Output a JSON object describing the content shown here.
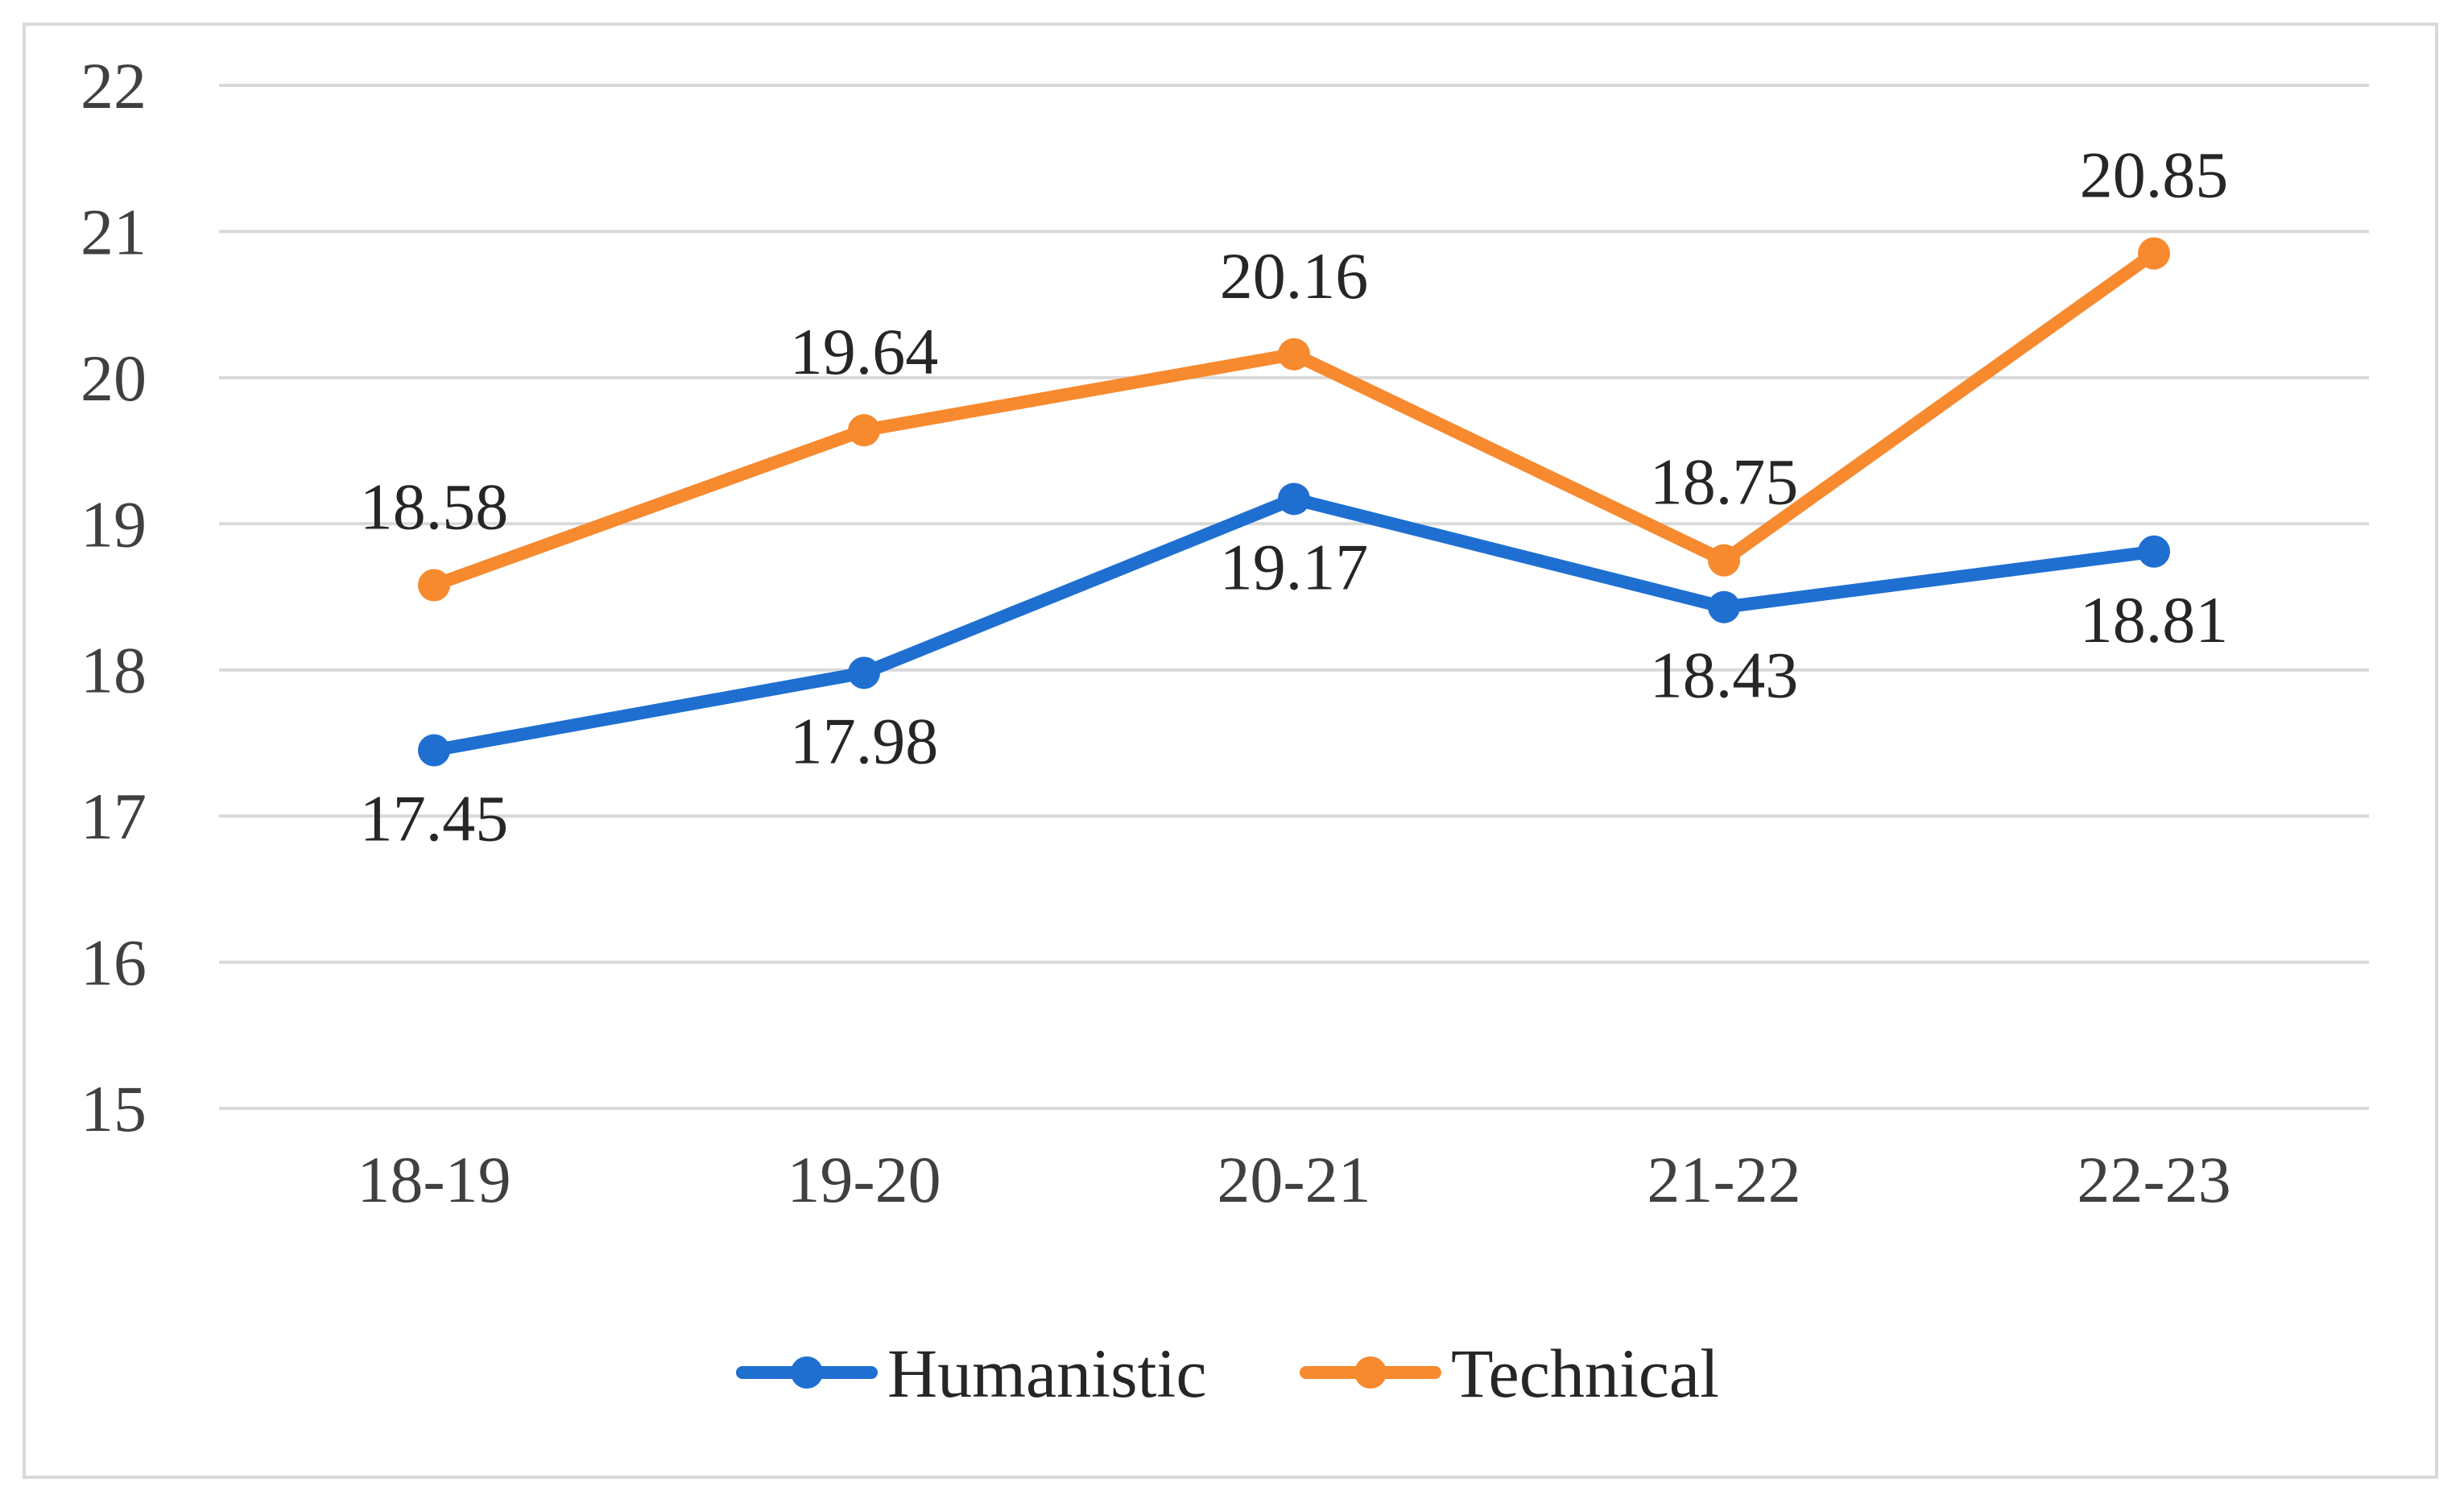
{
  "chart_data": {
    "type": "line",
    "categories": [
      "18-19",
      "19-20",
      "20-21",
      "21-22",
      "22-23"
    ],
    "series": [
      {
        "name": "Humanistic",
        "color": "#1f6fd1",
        "values": [
          17.45,
          17.98,
          19.17,
          18.43,
          18.81
        ],
        "label_pos": "below"
      },
      {
        "name": "Technical",
        "color": "#f7892e",
        "values": [
          18.58,
          19.64,
          20.16,
          18.75,
          20.85
        ],
        "label_pos": "above"
      }
    ],
    "ylim": [
      15,
      22
    ],
    "yticks": [
      "15",
      "16",
      "17",
      "18",
      "19",
      "20",
      "21",
      "22"
    ],
    "grid": true,
    "legend": "bottom-center",
    "gridline_color": "#d9d9d9"
  }
}
